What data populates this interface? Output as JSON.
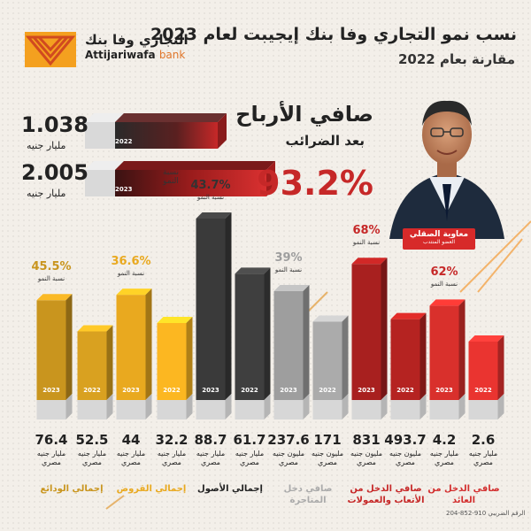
{
  "header": {
    "title": "نسب نمو التجاري وفا بنك إيجيبت لعام 2023",
    "subtitle": "مقارنة بعام 2022"
  },
  "logo": {
    "arabic": "التجاري وفا بنك",
    "english_main": "Attijariwafa",
    "english_suffix": "bank"
  },
  "net_profit": {
    "title": "صافي الأرباح",
    "subtitle": "بعد الضرائب",
    "growth": "93.2%",
    "growth_label": "نسبة النمو",
    "value_2022": "1.038",
    "value_2023": "2.005",
    "unit": "مليار جنيه",
    "year_2022": "2022",
    "year_2023": "2023"
  },
  "person": {
    "name": "معاوية الصقلي",
    "role": "العضو المنتدب"
  },
  "chart_data": {
    "type": "bar",
    "growth_label": "نسبة النمو",
    "series_years": [
      "2023",
      "2022"
    ],
    "groups": [
      {
        "category": "إجمالي الودائع",
        "growth": "45.5%",
        "value_2023": "76.4",
        "value_2022": "52.5",
        "unit_2023": "مليار جنيه مصري",
        "unit_2022": "مليار جنيه مصري",
        "color": "#c9951e"
      },
      {
        "category": "إجمالي القروض",
        "growth": "36.6%",
        "value_2023": "44",
        "value_2022": "32.2",
        "unit_2023": "مليار جنيه مصري",
        "unit_2022": "مليار جنيه مصري",
        "color": "#e9a91f"
      },
      {
        "category": "إجمالي الأصول",
        "growth": "43.7%",
        "value_2023": "88.7",
        "value_2022": "61.7",
        "unit_2023": "مليار جنيه مصري",
        "unit_2022": "مليار جنيه مصري",
        "color": "#3a3a3a"
      },
      {
        "category": "صافي دخل المتاجرة",
        "growth": "39%",
        "value_2023": "237.6",
        "value_2022": "171",
        "unit_2023": "مليون جنيه مصري",
        "unit_2022": "مليون جنيه مصري",
        "color": "#9e9e9e"
      },
      {
        "category": "صافي الدخل من الأتعاب والعمولات",
        "growth": "68%",
        "value_2023": "831",
        "value_2022": "493.7",
        "unit_2023": "مليون جنيه مصري",
        "unit_2022": "مليون جنيه مصري",
        "color": "#a8201f"
      },
      {
        "category": "صافي الدخل من العائد",
        "growth": "62%",
        "value_2023": "4.2",
        "value_2022": "2.6",
        "unit_2023": "مليار جنيه مصري",
        "unit_2022": "مليار جنيه مصري",
        "color": "#d9302c"
      }
    ],
    "category_colors": [
      "#c9951e",
      "#e9a91f",
      "#222222",
      "#aaaaaa",
      "#c62828",
      "#d32f2f"
    ]
  },
  "footer": {
    "code": "الرقم الضريبي 910-852-204"
  }
}
